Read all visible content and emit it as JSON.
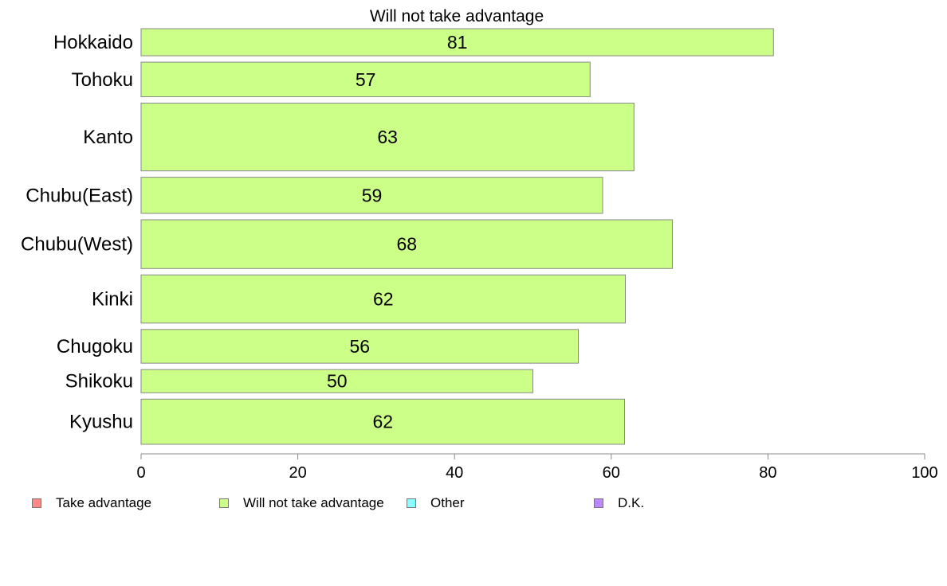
{
  "chart_data": {
    "type": "bar",
    "orientation": "horizontal",
    "title": "Will not take advantage",
    "categories": [
      "Hokkaido",
      "Tohoku",
      "Kanto",
      "Chubu(East)",
      "Chubu(West)",
      "Kinki",
      "Chugoku",
      "Shikoku",
      "Kyushu"
    ],
    "values": [
      81,
      57,
      63,
      59,
      68,
      62,
      56,
      50,
      62
    ],
    "data_labels": [
      "81",
      "57",
      "63",
      "59",
      "68",
      "62",
      "56",
      "50",
      "62"
    ],
    "bar_value_precise": [
      80.7,
      57.3,
      62.9,
      58.9,
      67.8,
      61.8,
      55.8,
      50.0,
      61.7
    ],
    "bar_relative_thickness": [
      0.9,
      1.15,
      2.25,
      1.2,
      1.62,
      1.6,
      1.12,
      0.77,
      1.5
    ],
    "xlim": [
      0,
      100
    ],
    "xticks": [
      0,
      20,
      40,
      60,
      80,
      100
    ],
    "xlabel": "",
    "ylabel": "",
    "grid": false,
    "bar_color": "#ccff88",
    "bar_edge_color": "#888888",
    "legend_position": "bottom-left",
    "legend": [
      {
        "label": "Take advantage",
        "color": "#ff8888"
      },
      {
        "label": "Will not take advantage",
        "color": "#ccff88"
      },
      {
        "label": "Other",
        "color": "#88ffff"
      },
      {
        "label": "D.K.",
        "color": "#bb88ff"
      }
    ]
  }
}
